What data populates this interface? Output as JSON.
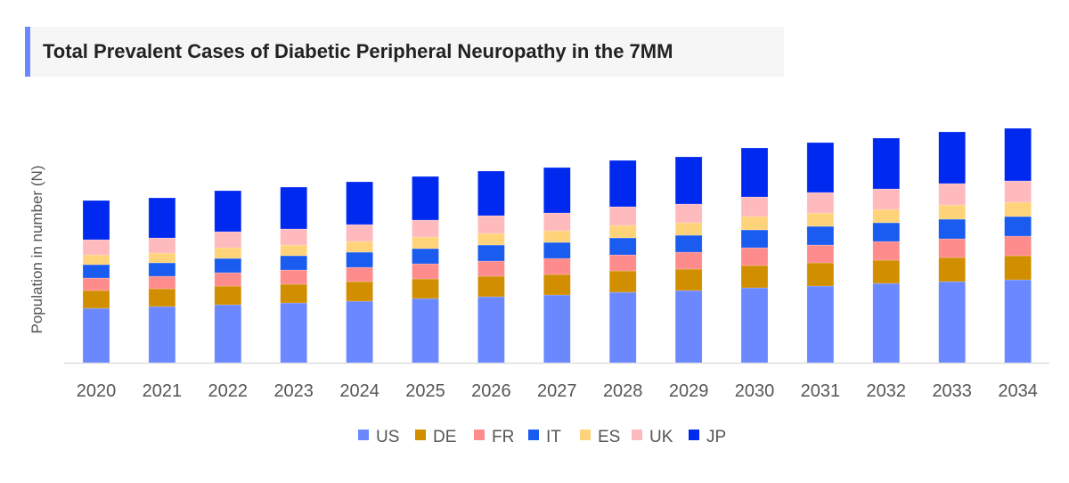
{
  "chart_data": {
    "type": "bar",
    "stacked": true,
    "title": "Total Prevalent Cases of Diabetic Peripheral Neuropathy in the 7MM",
    "xlabel": "",
    "ylabel": "Population in number (N)",
    "y_tick_labels_shown": false,
    "grid": false,
    "legend_position": "bottom",
    "categories": [
      "2020",
      "2021",
      "2022",
      "2023",
      "2024",
      "2025",
      "2026",
      "2027",
      "2028",
      "2029",
      "2030",
      "2031",
      "2032",
      "2033",
      "2034"
    ],
    "series": [
      {
        "name": "US",
        "color": "#6b88ff",
        "values": [
          61,
          63,
          65,
          67,
          69,
          72,
          74,
          76,
          79,
          81,
          84,
          86,
          89,
          91,
          93
        ]
      },
      {
        "name": "DE",
        "color": "#d18f00",
        "values": [
          20,
          20,
          21,
          21,
          22,
          22,
          23,
          23,
          24,
          24,
          25,
          26,
          26,
          27,
          27
        ]
      },
      {
        "name": "FR",
        "color": "#ff8c8c",
        "values": [
          14,
          14,
          15,
          16,
          16,
          17,
          17,
          18,
          18,
          19,
          20,
          20,
          21,
          21,
          22
        ]
      },
      {
        "name": "IT",
        "color": "#1a5cf0",
        "values": [
          15,
          15,
          16,
          16,
          17,
          17,
          18,
          18,
          19,
          19,
          20,
          21,
          21,
          22,
          22
        ]
      },
      {
        "name": "ES",
        "color": "#ffd37a",
        "values": [
          11,
          11,
          12,
          12,
          12,
          13,
          13,
          13,
          14,
          14,
          15,
          15,
          15,
          16,
          16
        ]
      },
      {
        "name": "UK",
        "color": "#ffbabd",
        "values": [
          17,
          17,
          18,
          18,
          19,
          19,
          20,
          20,
          21,
          21,
          22,
          23,
          23,
          24,
          24
        ]
      },
      {
        "name": "JP",
        "color": "#0029f0",
        "values": [
          44,
          45,
          46,
          47,
          48,
          49,
          50,
          51,
          52,
          53,
          55,
          56,
          57,
          58,
          59
        ]
      }
    ]
  }
}
